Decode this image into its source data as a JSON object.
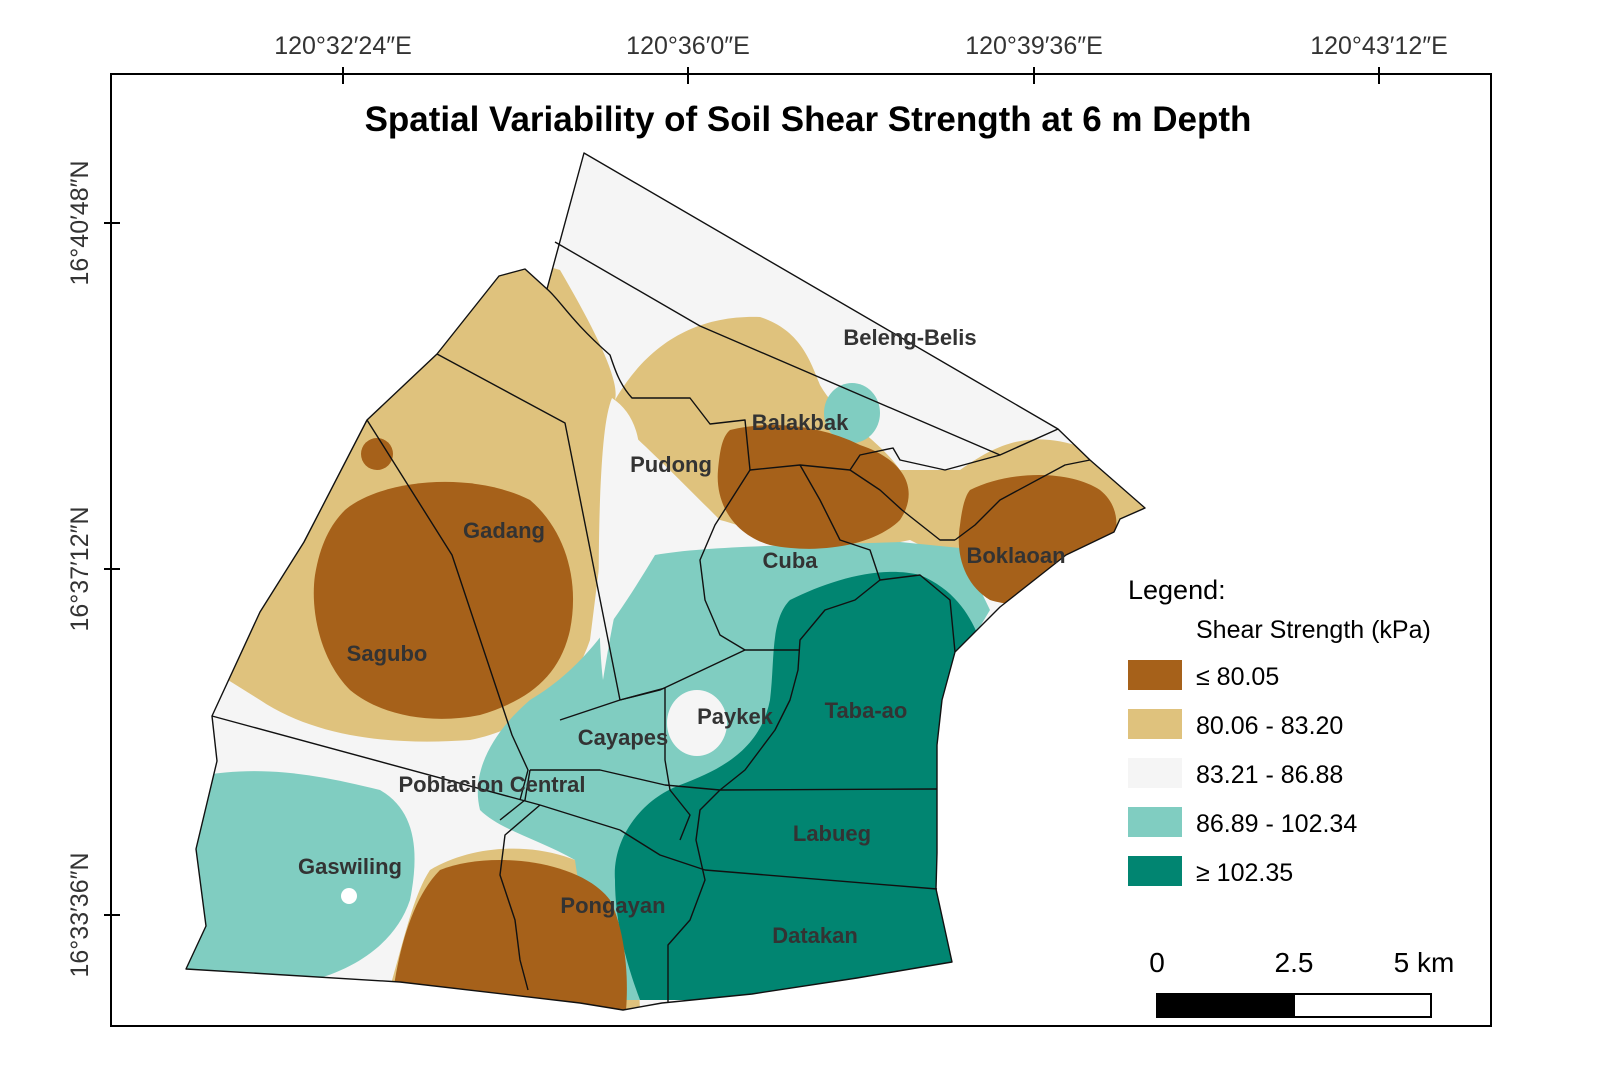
{
  "map": {
    "title": "Spatial Variability of Soil Shear Strength at 6 m Depth",
    "longitude_ticks": [
      "120°32′24″E",
      "120°36′0″E",
      "120°39′36″E",
      "120°43′12″E"
    ],
    "latitude_ticks": [
      "16°40′48″N",
      "16°37′12″N",
      "16°33′36″N"
    ],
    "place_labels": {
      "beleng_belis": "Beleng-Belis",
      "balakbak": "Balakbak",
      "pudong": "Pudong",
      "gadang": "Gadang",
      "cuba": "Cuba",
      "boklaoan": "Boklaoan",
      "sagubo": "Sagubo",
      "paykek": "Paykek",
      "taba_ao": "Taba-ao",
      "cayapes": "Cayapes",
      "poblacion_central": "Poblacion Central",
      "labueg": "Labueg",
      "gaswiling": "Gaswiling",
      "pongayan": "Pongayan",
      "datakan": "Datakan"
    }
  },
  "legend": {
    "title": "Legend:",
    "subtitle": "Shear Strength (kPa)",
    "classes": [
      {
        "label": "≤ 80.05",
        "color": "#a6611a"
      },
      {
        "label": "80.06 - 83.20",
        "color": "#dfc27d"
      },
      {
        "label": "83.21 - 86.88",
        "color": "#f5f5f5"
      },
      {
        "label": "86.89 - 102.34",
        "color": "#80cdc1"
      },
      {
        "label": "≥ 102.35",
        "color": "#018571"
      }
    ]
  },
  "scale_bar": {
    "labels": [
      "0",
      "2.5",
      "5 km"
    ]
  }
}
